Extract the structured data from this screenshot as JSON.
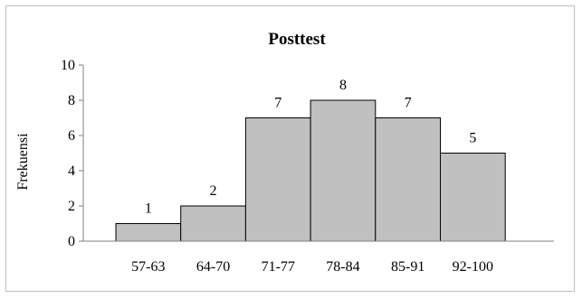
{
  "chart_data": {
    "type": "bar",
    "title": "Posttest",
    "xlabel": "",
    "ylabel": "Frekuensi",
    "categories": [
      "57-63",
      "64-70",
      "71-77",
      "78-84",
      "85-91",
      "92-100"
    ],
    "values": [
      1,
      2,
      7,
      8,
      7,
      5
    ],
    "data_labels": [
      "1",
      "2",
      "7",
      "8",
      "7",
      "5"
    ],
    "ylim": [
      0,
      10
    ],
    "yticks": [
      "0",
      "2",
      "4",
      "6",
      "8",
      "10"
    ],
    "grid": false,
    "legend": "none",
    "colors": {
      "bar_fill": "#c0c0c0",
      "bar_stroke": "#000000",
      "axis": "#808080",
      "frame": "#bfbfbf"
    }
  }
}
